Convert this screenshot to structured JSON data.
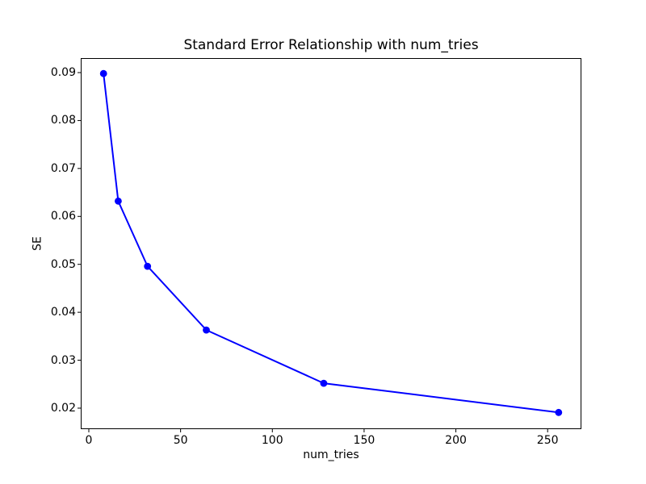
{
  "figure": {
    "background": "#ffffff"
  },
  "chart_data": {
    "type": "line",
    "title": "Standard Error Relationship with num_tries",
    "xlabel": "num_tries",
    "ylabel": "SE",
    "x": [
      8,
      16,
      32,
      64,
      128,
      256
    ],
    "series": [
      {
        "name": "SE",
        "values": [
          0.0898,
          0.0632,
          0.0496,
          0.0363,
          0.0252,
          0.0191
        ],
        "color": "#0000ff",
        "marker": "circle",
        "linestyle": "solid"
      }
    ],
    "xlim": [
      -4.4,
      268.4
    ],
    "ylim": [
      0.01562,
      0.09303
    ],
    "xticks": {
      "values": [
        0,
        50,
        100,
        150,
        200,
        250
      ],
      "labels": [
        "0",
        "50",
        "100",
        "150",
        "200",
        "250"
      ]
    },
    "yticks": {
      "values": [
        0.02,
        0.03,
        0.04,
        0.05,
        0.06,
        0.07,
        0.08,
        0.09
      ],
      "labels": [
        "0.02",
        "0.03",
        "0.04",
        "0.05",
        "0.06",
        "0.07",
        "0.08",
        "0.09"
      ]
    },
    "grid": false,
    "frame_color": "#000000",
    "text_color": "#000000"
  }
}
